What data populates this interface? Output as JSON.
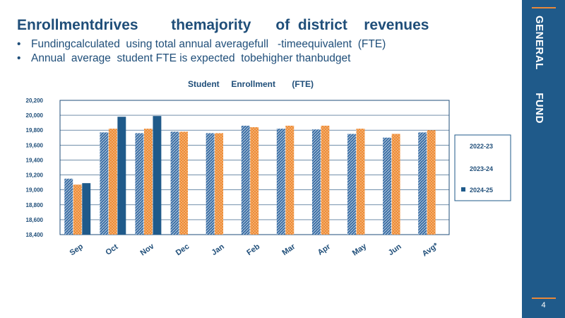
{
  "slide": {
    "title": "Enrollmentdrives        themajority      of  district    revenues",
    "bullets": [
      "Fundingcalculated  using total annual averagefull   -timeequivalent  (FTE)",
      "Annual  average  student FTE is expected  tobehigher thanbudget"
    ],
    "sidebar_label": "GENERAL       FUND",
    "page_number": "4"
  },
  "colors": {
    "series_2022": "#3a6ea5",
    "series_2023": "#ee8c35",
    "series_2024": "#1f5a8a",
    "sidebar": "#1f5a8a",
    "accent": "#e8883a"
  },
  "chart_data": {
    "type": "bar",
    "title": "Student     Enrollment       (FTE)",
    "categories": [
      "Sep",
      "Oct",
      "Nov",
      "Dec",
      "Jan",
      "Feb",
      "Mar",
      "Apr",
      "May",
      "Jun",
      "Avg*"
    ],
    "series": [
      {
        "name": "2022-23",
        "values": [
          19150,
          19770,
          19760,
          19780,
          19760,
          19860,
          19820,
          19810,
          19750,
          19700,
          19770
        ]
      },
      {
        "name": "2023-24",
        "values": [
          19070,
          19820,
          19820,
          19780,
          19760,
          19840,
          19860,
          19860,
          19820,
          19750,
          19800
        ]
      },
      {
        "name": "2024-25",
        "values": [
          19090,
          19980,
          19990,
          null,
          null,
          null,
          null,
          null,
          null,
          null,
          null
        ]
      }
    ],
    "ylim": [
      18400,
      20200
    ],
    "yticks": [
      "18,400",
      "18,600",
      "18,800",
      "19,000",
      "19,200",
      "19,400",
      "19,600",
      "19,800",
      "20,000",
      "20,200"
    ],
    "ytick_values": [
      18400,
      18600,
      18800,
      19000,
      19200,
      19400,
      19600,
      19800,
      20000,
      20200
    ],
    "grid": true,
    "legend": "right"
  }
}
